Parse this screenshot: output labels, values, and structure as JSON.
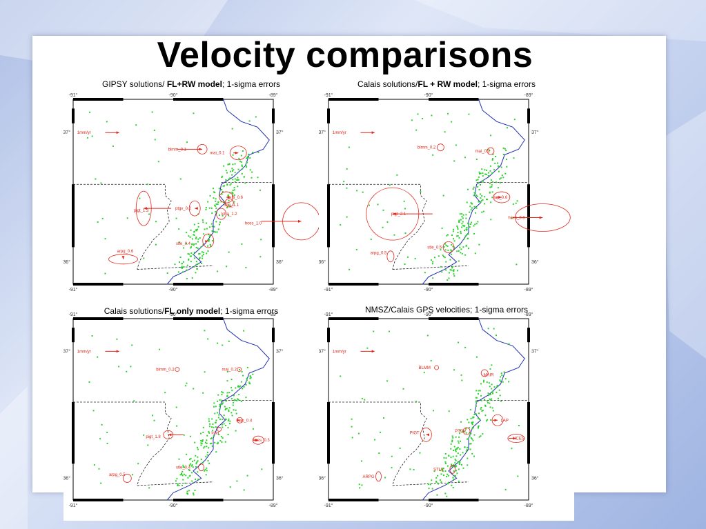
{
  "slide": {
    "title": "Velocity comparisons"
  },
  "panels": [
    {
      "title_pre": "GIPSY solutions/ ",
      "title_bold": "FL+RW model",
      "title_post": "; 1-sigma errors",
      "scale_label": "1mm/yr",
      "ticks": {
        "lon": [
          "-91°",
          "-90°",
          "-89°"
        ],
        "lat": [
          "37°",
          "36°"
        ]
      },
      "stations": [
        {
          "label": "blmm_0.1"
        },
        {
          "label": "mai_0.1"
        },
        {
          "label": "lo_0.6"
        },
        {
          "label": "mm_1.1"
        },
        {
          "label": "lcha_1.2"
        },
        {
          "label": "pigt_1.3"
        },
        {
          "label": "ptgv_0.2"
        },
        {
          "label": "hces_1.0"
        },
        {
          "label": "stle_0.4"
        },
        {
          "label": "arpg_0.6"
        }
      ]
    },
    {
      "title_pre": "Calais solutions/",
      "title_bold": "FL + RW model",
      "title_post": "; 1-sigma errors",
      "scale_label": "1mm/yr",
      "ticks": {
        "lon": [
          "-91°",
          "-90°",
          "-89°"
        ],
        "lat": [
          "37°",
          "36°"
        ]
      },
      "stations": [
        {
          "label": "blmm_0.2"
        },
        {
          "label": "mai_0.2"
        },
        {
          "label": "lap_0.6"
        },
        {
          "label": "pigt_2.1"
        },
        {
          "label": "hces_0.8"
        },
        {
          "label": "stle_0.5"
        },
        {
          "label": "arpg_0.5"
        }
      ]
    },
    {
      "title_pre": "Calais solutions/",
      "title_bold": "FL only model",
      "title_post": "; 1-sigma errors",
      "scale_label": "1mm/yr",
      "ticks": {
        "lon": [
          "-91°",
          "-90°",
          "-89°"
        ],
        "lat": [
          "37°",
          "36°"
        ]
      },
      "stations": [
        {
          "label": "blmm_0.2"
        },
        {
          "label": "mai_0.2"
        },
        {
          "label": "lap_0.4"
        },
        {
          "label": "lcha"
        },
        {
          "label": "pigt_1.8"
        },
        {
          "label": "hces_0.3"
        },
        {
          "label": "stle_0.4"
        },
        {
          "label": "arpg_0.5"
        }
      ]
    },
    {
      "title_pre": "NMSZ/Calais GPS velocities; 1-sigma errors",
      "title_bold": "",
      "title_post": "",
      "scale_label": "1mm/yr",
      "ticks": {
        "lon": [
          "-91°",
          "-90°",
          "-89°"
        ],
        "lat": [
          "37°",
          "36°"
        ]
      },
      "stations": [
        {
          "label": "BLMM"
        },
        {
          "label": "MAIR"
        },
        {
          "label": "PTGV"
        },
        {
          "label": "LAP"
        },
        {
          "label": "PIGT"
        },
        {
          "label": "HCES"
        },
        {
          "label": "STLE"
        },
        {
          "label": "ARPG"
        }
      ]
    }
  ],
  "colors": {
    "river": "#1f2fb0",
    "sites": "#2cd12c",
    "vectors": "#e0261a",
    "border": "#222222"
  }
}
